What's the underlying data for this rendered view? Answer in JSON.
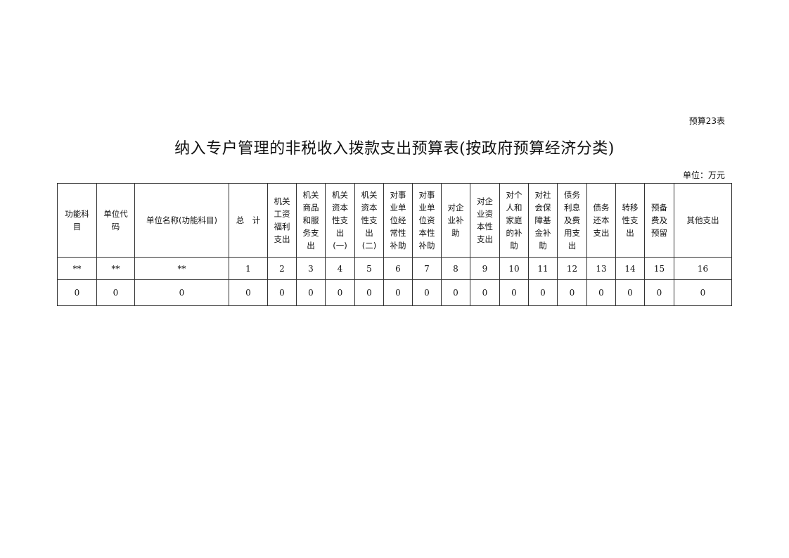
{
  "table_code": "预算23表",
  "title": "纳入专户管理的非税收入拨款支出预算表(按政府预算经济分类)",
  "unit": "单位：万元",
  "headers": [
    "功能科\n目",
    "单位代\n码",
    "单位名称(功能科目)",
    "总　计",
    "机关\n工资\n福利\n支出",
    "机关\n商品\n和服\n务支\n出",
    "机关\n资本\n性支\n出\n(一)",
    "机关\n资本\n性支\n出\n(二)",
    "对事\n业单\n位经\n常性\n补助",
    "对事\n业单\n位资\n本性\n补助",
    "对企\n业补\n助",
    "对企\n业资\n本性\n支出",
    "对个\n人和\n家庭\n的补\n助",
    "对社\n会保\n障基\n金补\n助",
    "债务\n利息\n及费\n用支\n出",
    "债务\n还本\n支出",
    "转移\n性支\n出",
    "预备\n费及\n预留",
    "其他支出"
  ],
  "index_row": [
    "**",
    "**",
    "**",
    "1",
    "2",
    "3",
    "4",
    "5",
    "6",
    "7",
    "8",
    "9",
    "10",
    "11",
    "12",
    "13",
    "14",
    "15",
    "16"
  ],
  "value_row": [
    "0",
    "0",
    "0",
    "0",
    "0",
    "0",
    "0",
    "0",
    "0",
    "0",
    "0",
    "0",
    "0",
    "0",
    "0",
    "0",
    "0",
    "0",
    "0"
  ]
}
